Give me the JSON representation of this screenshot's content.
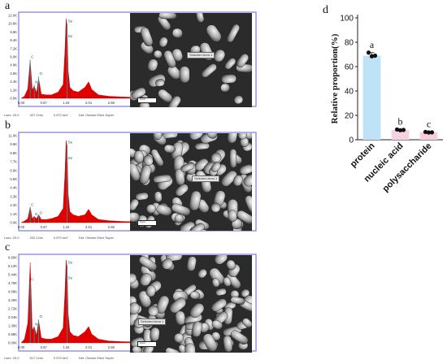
{
  "panels": {
    "a": {
      "letter": "a",
      "y_ticks": [
        "12.0K",
        "10.8K",
        "9.6K",
        "8.4K",
        "7.2K",
        "6.0K",
        "4.8K",
        "3.6K",
        "2.4K",
        "1.2K",
        "0.0K"
      ],
      "x_ticks": [
        "0.00",
        "0.67",
        "1.34",
        "2.01",
        "2.68",
        "3.35",
        "4.02",
        "4.69",
        "5.36",
        "6.03"
      ],
      "peak_labels": [
        {
          "text": "Se",
          "x": 1.37,
          "y": 11.0
        },
        {
          "text": "Se",
          "x": 1.37,
          "y": 8.8
        },
        {
          "text": "C",
          "x": 0.27,
          "y": 5.8
        },
        {
          "text": "N",
          "x": 0.39,
          "y": 2.2
        },
        {
          "text": "O",
          "x": 0.52,
          "y": 3.4
        }
      ],
      "footer": {
        "lsec": "Lsec: 20.0",
        "cnts": "427 Cnts",
        "kev": "0.970 keV",
        "det": "Det: Octane Elect Super"
      },
      "sem_label": "Selected Area 1",
      "sem_scale": "2 µm"
    },
    "b": {
      "letter": "b",
      "y_ticks": [
        "11.0K",
        "9.9K",
        "8.8K",
        "7.7K",
        "6.6K",
        "5.5K",
        "4.4K",
        "3.3K",
        "2.2K",
        "1.1K",
        "0.0K"
      ],
      "x_ticks": [
        "0.00",
        "0.67",
        "1.34",
        "2.01",
        "2.68",
        "3.35",
        "4.02",
        "4.69",
        "5.36",
        "6.03"
      ],
      "peak_labels": [
        {
          "text": "Se",
          "x": 1.37,
          "y": 10.0
        },
        {
          "text": "Se",
          "x": 1.37,
          "y": 8.0
        },
        {
          "text": "C",
          "x": 0.27,
          "y": 2.1
        },
        {
          "text": "N",
          "x": 0.39,
          "y": 0.9
        },
        {
          "text": "O",
          "x": 0.52,
          "y": 1.1
        }
      ],
      "footer": {
        "lsec": "Lsec: 20.0",
        "cnts": "202 Cnts",
        "kev": "0.970 keV",
        "det": "Det: Octane Elect Super"
      },
      "sem_label": "Selected Area 1",
      "sem_scale": "2 µm"
    },
    "c": {
      "letter": "c",
      "y_ticks": [
        "6.80K",
        "6.12K",
        "5.44K",
        "4.76K",
        "4.08K",
        "3.40K",
        "2.72K",
        "2.04K",
        "1.36K",
        "0.68K",
        "0.00K"
      ],
      "x_ticks": [
        "0.00",
        "0.67",
        "1.34",
        "2.01",
        "2.68",
        "3.35",
        "4.02",
        "4.69",
        "5.36",
        "6.03"
      ],
      "peak_labels": [
        {
          "text": "Se",
          "x": 1.37,
          "y": 6.3
        },
        {
          "text": "Se",
          "x": 1.37,
          "y": 5.1
        },
        {
          "text": "C",
          "x": 0.27,
          "y": 5.0
        },
        {
          "text": "N",
          "x": 0.39,
          "y": 1.4
        },
        {
          "text": "O",
          "x": 0.52,
          "y": 2.0
        }
      ],
      "footer": {
        "lsec": "Lsec: 20.0",
        "cnts": "517 Cnts",
        "kev": "0.970 keV",
        "det": "Det: Octane Elect Super"
      },
      "sem_label": "Selected Area 1",
      "sem_scale": "2 µm"
    }
  },
  "chart_data": [
    {
      "type": "line",
      "title": "",
      "xlabel": "",
      "ylabel": "",
      "x_range": [
        0,
        6.7
      ],
      "y_range": [
        0,
        12.0
      ],
      "series": [
        {
          "color": "#e00000",
          "x": [
            0.0,
            0.1,
            0.2,
            0.27,
            0.33,
            0.39,
            0.46,
            0.52,
            0.6,
            0.75,
            0.9,
            1.1,
            1.25,
            1.3,
            1.34,
            1.37,
            1.4,
            1.45,
            1.55,
            1.7,
            1.9,
            2.01,
            2.1,
            2.3,
            2.6,
            3.0,
            3.35,
            3.7,
            4.02,
            4.4,
            4.69,
            5.0,
            5.36,
            5.7,
            6.03,
            6.4,
            6.7
          ],
          "y": [
            0.0,
            0.3,
            1.4,
            5.6,
            1.2,
            1.8,
            0.8,
            2.9,
            0.6,
            0.5,
            0.5,
            0.9,
            2.0,
            6.5,
            11.5,
            10.5,
            4.0,
            1.6,
            1.1,
            0.9,
            1.6,
            2.4,
            1.3,
            0.5,
            0.3,
            0.2,
            0.15,
            0.1,
            0.1,
            0.08,
            0.06,
            0.05,
            0.04,
            0.03,
            0.02,
            0.02,
            0.01
          ]
        }
      ]
    },
    {
      "type": "line",
      "title": "",
      "xlabel": "",
      "ylabel": "",
      "x_range": [
        0,
        6.7
      ],
      "y_range": [
        0,
        11.0
      ],
      "series": [
        {
          "color": "#e00000",
          "x": [
            0.0,
            0.1,
            0.2,
            0.27,
            0.33,
            0.39,
            0.46,
            0.52,
            0.6,
            0.75,
            0.9,
            1.1,
            1.25,
            1.3,
            1.34,
            1.37,
            1.4,
            1.45,
            1.55,
            1.7,
            1.9,
            2.01,
            2.1,
            2.3,
            2.6,
            3.0,
            3.35,
            3.7,
            4.02,
            4.4,
            4.69,
            5.0,
            5.36,
            5.7,
            6.03,
            6.4,
            6.7
          ],
          "y": [
            0.0,
            0.2,
            0.5,
            2.0,
            0.5,
            0.8,
            0.5,
            1.0,
            0.4,
            0.4,
            0.5,
            0.8,
            1.8,
            5.8,
            10.4,
            9.6,
            3.6,
            1.4,
            1.0,
            0.8,
            1.0,
            1.7,
            1.0,
            0.4,
            0.25,
            0.15,
            0.12,
            0.1,
            0.08,
            0.06,
            0.05,
            0.04,
            0.03,
            0.03,
            0.02,
            0.02,
            0.01
          ]
        }
      ]
    },
    {
      "type": "line",
      "title": "",
      "xlabel": "",
      "ylabel": "",
      "x_range": [
        0,
        6.7
      ],
      "y_range": [
        0,
        6.8
      ],
      "series": [
        {
          "color": "#e00000",
          "x": [
            0.0,
            0.1,
            0.2,
            0.27,
            0.33,
            0.39,
            0.46,
            0.52,
            0.6,
            0.75,
            0.9,
            1.1,
            1.25,
            1.3,
            1.34,
            1.37,
            1.4,
            1.45,
            1.55,
            1.7,
            1.9,
            2.01,
            2.1,
            2.3,
            2.6,
            3.0,
            3.35,
            3.7,
            4.02,
            4.4,
            4.69,
            5.0,
            5.36,
            5.7,
            6.03,
            6.4,
            6.7
          ],
          "y": [
            0.0,
            0.3,
            1.6,
            6.4,
            1.0,
            1.3,
            0.6,
            1.8,
            0.4,
            0.3,
            0.3,
            0.5,
            1.2,
            3.8,
            6.6,
            6.0,
            2.3,
            0.9,
            0.6,
            0.5,
            0.9,
            1.3,
            0.7,
            0.3,
            0.15,
            0.1,
            0.08,
            0.06,
            0.05,
            0.04,
            0.03,
            0.03,
            0.02,
            0.02,
            0.02,
            0.01,
            0.01
          ]
        }
      ]
    },
    {
      "type": "bar",
      "title": "",
      "xlabel": "",
      "ylabel": "Relative proportion(%)",
      "categories": [
        "protein",
        "nucleic acid",
        "polysaccharide"
      ],
      "values": [
        69,
        8,
        6.2
      ],
      "points": [
        [
          71.5,
          68.5,
          69
        ],
        [
          8.4,
          7.8,
          8.1
        ],
        [
          6.4,
          6.0,
          6.1
        ]
      ],
      "letters": [
        "a",
        "b",
        "c"
      ],
      "colors": [
        "#bfe3f6",
        "#f4d2e0",
        "#f6cfdd"
      ],
      "ylim": [
        0,
        100
      ],
      "yticks": [
        0,
        20,
        40,
        60,
        80,
        100
      ],
      "panel_letter": "d"
    }
  ]
}
